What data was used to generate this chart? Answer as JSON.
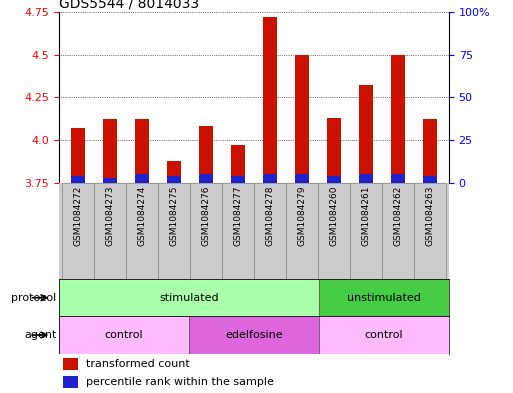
{
  "title": "GDS5544 / 8014033",
  "samples": [
    "GSM1084272",
    "GSM1084273",
    "GSM1084274",
    "GSM1084275",
    "GSM1084276",
    "GSM1084277",
    "GSM1084278",
    "GSM1084279",
    "GSM1084260",
    "GSM1084261",
    "GSM1084262",
    "GSM1084263"
  ],
  "red_values": [
    4.07,
    4.12,
    4.12,
    3.88,
    4.08,
    3.97,
    4.72,
    4.5,
    4.13,
    4.32,
    4.5,
    4.12
  ],
  "blue_values": [
    3.79,
    3.78,
    3.8,
    3.79,
    3.8,
    3.79,
    3.8,
    3.8,
    3.79,
    3.8,
    3.8,
    3.79
  ],
  "ymin": 3.75,
  "ymax": 4.75,
  "yticks": [
    3.75,
    4.0,
    4.25,
    4.5,
    4.75
  ],
  "y2ticks_right": [
    0,
    25,
    50,
    75,
    100
  ],
  "bar_color_red": "#cc1100",
  "bar_color_blue": "#2222cc",
  "bar_width": 0.45,
  "protocol_groups": [
    {
      "label": "stimulated",
      "start": 0,
      "end": 8,
      "color": "#aaffaa"
    },
    {
      "label": "unstimulated",
      "start": 8,
      "end": 12,
      "color": "#44cc44"
    }
  ],
  "agent_groups": [
    {
      "label": "control",
      "start": 0,
      "end": 4,
      "color": "#ffbbff"
    },
    {
      "label": "edelfosine",
      "start": 4,
      "end": 8,
      "color": "#dd66dd"
    },
    {
      "label": "control",
      "start": 8,
      "end": 12,
      "color": "#ffbbff"
    }
  ],
  "legend_red": "transformed count",
  "legend_blue": "percentile rank within the sample",
  "protocol_label": "protocol",
  "agent_label": "agent",
  "background_color": "#ffffff"
}
